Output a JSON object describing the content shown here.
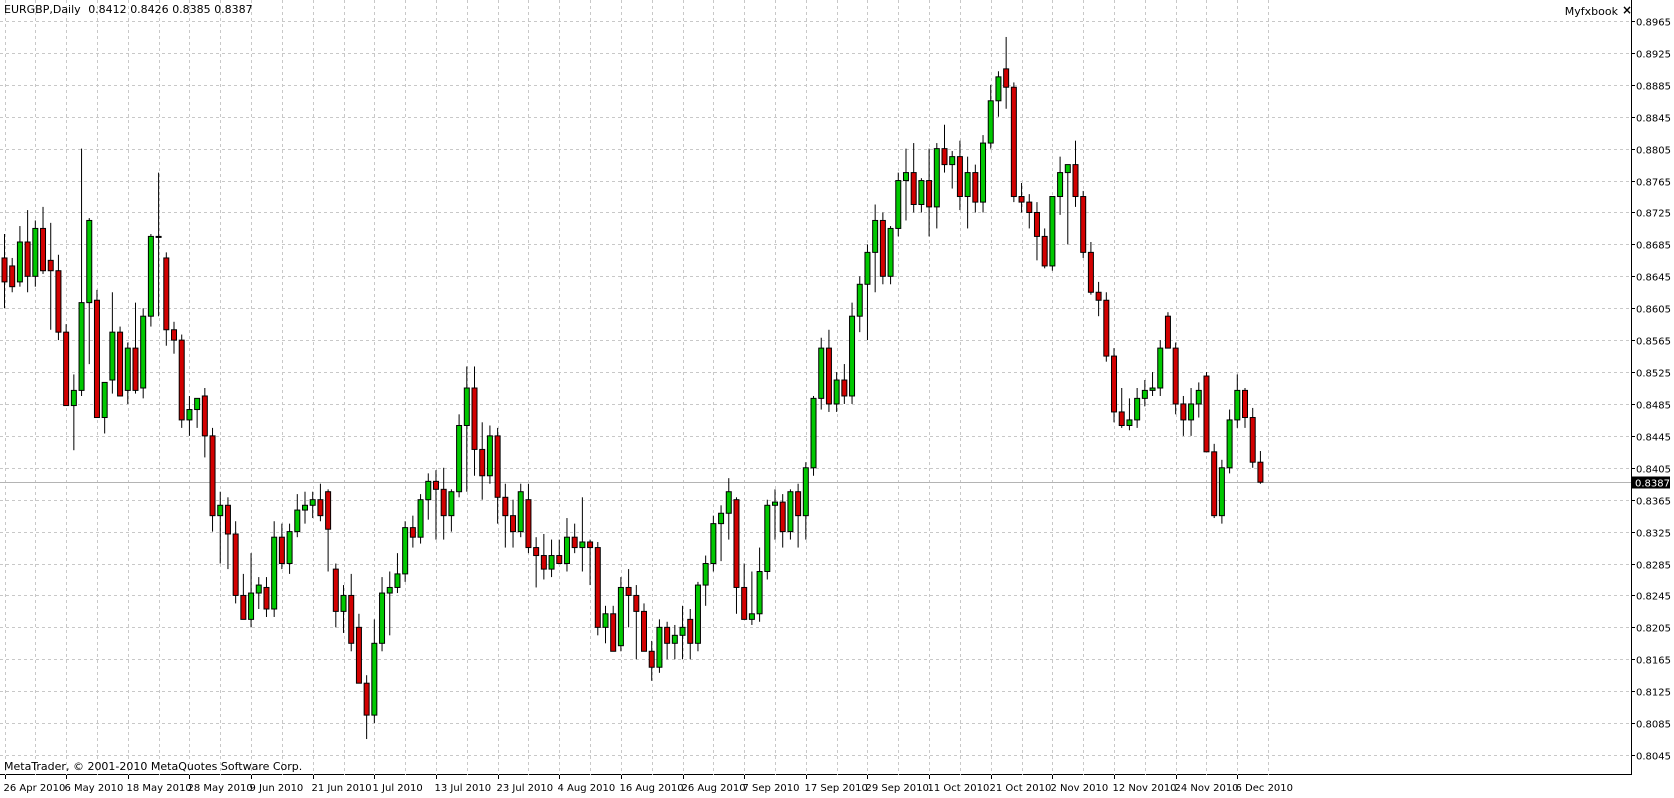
{
  "header": {
    "symbol": "EURGBP,Daily",
    "open": "0.8412",
    "high": "0.8426",
    "low": "0.8385",
    "close": "0.8387",
    "indicator": "Myfxbook",
    "close_icon": "close-icon"
  },
  "footer": {
    "copyright": "MetaTrader, © 2001-2010 MetaQuotes Software Corp."
  },
  "colors": {
    "bull": "#00c800",
    "bear": "#d20000",
    "grid": "#c8c8c8",
    "line": "#000000"
  },
  "chart_data": {
    "type": "candlestick",
    "symbol": "EURGBP",
    "timeframe": "Daily",
    "current_price": "0.8387",
    "ylim": [
      0.8045,
      0.8965
    ],
    "y_ticks": [
      "0.8965",
      "0.8925",
      "0.8885",
      "0.8845",
      "0.8805",
      "0.8765",
      "0.8725",
      "0.8685",
      "0.8645",
      "0.8605",
      "0.8565",
      "0.8525",
      "0.8485",
      "0.8445",
      "0.8405",
      "0.8365",
      "0.8325",
      "0.8285",
      "0.8245",
      "0.8205",
      "0.8165",
      "0.8125",
      "0.8085",
      "0.8045"
    ],
    "x_ticks": [
      "26 Apr 2010",
      "6 May 2010",
      "18 May 2010",
      "28 May 2010",
      "9 Jun 2010",
      "21 Jun 2010",
      "1 Jul 2010",
      "13 Jul 2010",
      "23 Jul 2010",
      "4 Aug 2010",
      "16 Aug 2010",
      "26 Aug 2010",
      "7 Sep 2010",
      "17 Sep 2010",
      "29 Sep 2010",
      "11 Oct 2010",
      "21 Oct 2010",
      "2 Nov 2010",
      "12 Nov 2010",
      "24 Nov 2010",
      "6 Dec 2010"
    ],
    "grid": true,
    "candles": [
      [
        0.8668,
        0.8698,
        0.8605,
        0.8638
      ],
      [
        0.8658,
        0.8668,
        0.8625,
        0.8632
      ],
      [
        0.8638,
        0.8708,
        0.8632,
        0.8688
      ],
      [
        0.8688,
        0.8728,
        0.8625,
        0.8645
      ],
      [
        0.8645,
        0.8715,
        0.8632,
        0.8705
      ],
      [
        0.8705,
        0.8732,
        0.8648,
        0.8652
      ],
      [
        0.8665,
        0.8712,
        0.8578,
        0.8652
      ],
      [
        0.8652,
        0.8672,
        0.8565,
        0.8575
      ],
      [
        0.8575,
        0.8585,
        0.8483,
        0.8483
      ],
      [
        0.8483,
        0.8522,
        0.8427,
        0.8502
      ],
      [
        0.8502,
        0.8805,
        0.8495,
        0.8612
      ],
      [
        0.8612,
        0.8718,
        0.8535,
        0.8715
      ],
      [
        0.8615,
        0.8628,
        0.8468,
        0.8468
      ],
      [
        0.8468,
        0.8512,
        0.8448,
        0.8512
      ],
      [
        0.8515,
        0.8625,
        0.8498,
        0.8575
      ],
      [
        0.8575,
        0.8582,
        0.8495,
        0.8495
      ],
      [
        0.8502,
        0.8562,
        0.8485,
        0.8555
      ],
      [
        0.8555,
        0.8612,
        0.8498,
        0.8502
      ],
      [
        0.8505,
        0.8605,
        0.8492,
        0.8595
      ],
      [
        0.8595,
        0.8698,
        0.8582,
        0.8695
      ],
      [
        0.8695,
        0.8775,
        0.8595,
        0.8695
      ],
      [
        0.8668,
        0.8675,
        0.8558,
        0.8578
      ],
      [
        0.8578,
        0.8588,
        0.8548,
        0.8565
      ],
      [
        0.8565,
        0.8572,
        0.8455,
        0.8465
      ],
      [
        0.8465,
        0.8495,
        0.8445,
        0.8478
      ],
      [
        0.8478,
        0.8492,
        0.8455,
        0.8492
      ],
      [
        0.8495,
        0.8505,
        0.8418,
        0.8445
      ],
      [
        0.8445,
        0.8455,
        0.8325,
        0.8345
      ],
      [
        0.8345,
        0.8375,
        0.8285,
        0.8358
      ],
      [
        0.8358,
        0.8368,
        0.8278,
        0.8322
      ],
      [
        0.8322,
        0.8338,
        0.8235,
        0.8245
      ],
      [
        0.8245,
        0.8272,
        0.8215,
        0.8215
      ],
      [
        0.8215,
        0.8298,
        0.8205,
        0.8248
      ],
      [
        0.8248,
        0.8268,
        0.8228,
        0.8258
      ],
      [
        0.8255,
        0.8268,
        0.8218,
        0.8228
      ],
      [
        0.8228,
        0.8338,
        0.8218,
        0.8318
      ],
      [
        0.8318,
        0.8335,
        0.8278,
        0.8285
      ],
      [
        0.8285,
        0.8335,
        0.8272,
        0.8325
      ],
      [
        0.8325,
        0.8372,
        0.8318,
        0.8352
      ],
      [
        0.8352,
        0.8375,
        0.8335,
        0.8358
      ],
      [
        0.8358,
        0.8375,
        0.8342,
        0.8365
      ],
      [
        0.8365,
        0.8385,
        0.8338,
        0.8345
      ],
      [
        0.8375,
        0.8378,
        0.8275,
        0.8328
      ],
      [
        0.8278,
        0.8285,
        0.8205,
        0.8225
      ],
      [
        0.8225,
        0.8258,
        0.8198,
        0.8245
      ],
      [
        0.8245,
        0.8272,
        0.8175,
        0.8185
      ],
      [
        0.8205,
        0.8222,
        0.8138,
        0.8135
      ],
      [
        0.8135,
        0.8145,
        0.8065,
        0.8095
      ],
      [
        0.8095,
        0.8215,
        0.8085,
        0.8185
      ],
      [
        0.8185,
        0.8268,
        0.8175,
        0.8248
      ],
      [
        0.8248,
        0.8275,
        0.8195,
        0.8255
      ],
      [
        0.8255,
        0.8298,
        0.8248,
        0.8272
      ],
      [
        0.8272,
        0.8338,
        0.8262,
        0.833
      ],
      [
        0.833,
        0.8345,
        0.8305,
        0.8318
      ],
      [
        0.8318,
        0.8372,
        0.831,
        0.8365
      ],
      [
        0.8365,
        0.8398,
        0.834,
        0.8388
      ],
      [
        0.8388,
        0.8402,
        0.8315,
        0.8378
      ],
      [
        0.8378,
        0.8405,
        0.8315,
        0.8345
      ],
      [
        0.8345,
        0.8378,
        0.8325,
        0.8375
      ],
      [
        0.8375,
        0.8472,
        0.8368,
        0.8458
      ],
      [
        0.8458,
        0.8532,
        0.8375,
        0.8505
      ],
      [
        0.8505,
        0.8532,
        0.8395,
        0.8428
      ],
      [
        0.8428,
        0.8462,
        0.8365,
        0.8395
      ],
      [
        0.8395,
        0.8458,
        0.8385,
        0.8445
      ],
      [
        0.8445,
        0.8455,
        0.8335,
        0.8368
      ],
      [
        0.8368,
        0.8385,
        0.8305,
        0.8345
      ],
      [
        0.8345,
        0.8365,
        0.8305,
        0.8325
      ],
      [
        0.8325,
        0.8385,
        0.8318,
        0.8375
      ],
      [
        0.8365,
        0.8385,
        0.8298,
        0.8305
      ],
      [
        0.8305,
        0.8318,
        0.8255,
        0.8295
      ],
      [
        0.8295,
        0.8322,
        0.8265,
        0.8278
      ],
      [
        0.8278,
        0.8315,
        0.8268,
        0.8295
      ],
      [
        0.8295,
        0.8315,
        0.8285,
        0.8285
      ],
      [
        0.8285,
        0.8342,
        0.8275,
        0.8318
      ],
      [
        0.8318,
        0.8335,
        0.8298,
        0.8305
      ],
      [
        0.8305,
        0.8368,
        0.8275,
        0.8312
      ],
      [
        0.8312,
        0.8315,
        0.8258,
        0.8305
      ],
      [
        0.8305,
        0.8312,
        0.8195,
        0.8205
      ],
      [
        0.8205,
        0.8232,
        0.8185,
        0.8222
      ],
      [
        0.8222,
        0.8232,
        0.8175,
        0.8175
      ],
      [
        0.8182,
        0.8268,
        0.8175,
        0.8255
      ],
      [
        0.8255,
        0.8278,
        0.8205,
        0.8245
      ],
      [
        0.8245,
        0.8258,
        0.8165,
        0.8225
      ],
      [
        0.8225,
        0.8235,
        0.8175,
        0.8175
      ],
      [
        0.8175,
        0.8188,
        0.8138,
        0.8155
      ],
      [
        0.8155,
        0.8215,
        0.8148,
        0.8205
      ],
      [
        0.8205,
        0.8212,
        0.8165,
        0.8185
      ],
      [
        0.8185,
        0.8208,
        0.8165,
        0.8195
      ],
      [
        0.8195,
        0.8232,
        0.8165,
        0.8205
      ],
      [
        0.8215,
        0.8228,
        0.8165,
        0.8185
      ],
      [
        0.8185,
        0.8262,
        0.8175,
        0.8258
      ],
      [
        0.8258,
        0.8295,
        0.8232,
        0.8285
      ],
      [
        0.8285,
        0.8345,
        0.8275,
        0.8335
      ],
      [
        0.8335,
        0.8358,
        0.8288,
        0.8348
      ],
      [
        0.8348,
        0.8392,
        0.8315,
        0.8375
      ],
      [
        0.8365,
        0.8368,
        0.8222,
        0.8255
      ],
      [
        0.8255,
        0.8285,
        0.8215,
        0.8215
      ],
      [
        0.8215,
        0.8275,
        0.8208,
        0.8222
      ],
      [
        0.8222,
        0.8305,
        0.8212,
        0.8275
      ],
      [
        0.8275,
        0.8365,
        0.8265,
        0.8358
      ],
      [
        0.8358,
        0.8378,
        0.8315,
        0.8362
      ],
      [
        0.8362,
        0.8372,
        0.8305,
        0.8325
      ],
      [
        0.8325,
        0.8378,
        0.8315,
        0.8375
      ],
      [
        0.8375,
        0.8385,
        0.8305,
        0.8345
      ],
      [
        0.8345,
        0.8412,
        0.8315,
        0.8405
      ],
      [
        0.8405,
        0.8495,
        0.8395,
        0.8492
      ],
      [
        0.8492,
        0.8568,
        0.8478,
        0.8555
      ],
      [
        0.8555,
        0.8578,
        0.8475,
        0.8485
      ],
      [
        0.8485,
        0.8525,
        0.8475,
        0.8515
      ],
      [
        0.8515,
        0.8535,
        0.8485,
        0.8495
      ],
      [
        0.8495,
        0.8612,
        0.8485,
        0.8595
      ],
      [
        0.8595,
        0.8645,
        0.8575,
        0.8635
      ],
      [
        0.8635,
        0.8685,
        0.8565,
        0.8675
      ],
      [
        0.8675,
        0.8735,
        0.8625,
        0.8715
      ],
      [
        0.8715,
        0.8725,
        0.8635,
        0.8645
      ],
      [
        0.8645,
        0.8708,
        0.8635,
        0.8705
      ],
      [
        0.8705,
        0.8775,
        0.8695,
        0.8765
      ],
      [
        0.8765,
        0.8805,
        0.8715,
        0.8775
      ],
      [
        0.8775,
        0.8812,
        0.8725,
        0.8735
      ],
      [
        0.8735,
        0.8768,
        0.8725,
        0.8765
      ],
      [
        0.8765,
        0.8805,
        0.8695,
        0.8732
      ],
      [
        0.8732,
        0.8812,
        0.8705,
        0.8805
      ],
      [
        0.8805,
        0.8835,
        0.8775,
        0.8785
      ],
      [
        0.8785,
        0.8802,
        0.8755,
        0.8795
      ],
      [
        0.8795,
        0.8815,
        0.8728,
        0.8745
      ],
      [
        0.8745,
        0.8795,
        0.8705,
        0.8775
      ],
      [
        0.8775,
        0.8785,
        0.8725,
        0.8738
      ],
      [
        0.8738,
        0.8822,
        0.8725,
        0.8812
      ],
      [
        0.8812,
        0.8885,
        0.8805,
        0.8865
      ],
      [
        0.8865,
        0.8902,
        0.8845,
        0.8895
      ],
      [
        0.8905,
        0.8945,
        0.8855,
        0.8882
      ],
      [
        0.8882,
        0.8888,
        0.8738,
        0.8745
      ],
      [
        0.8745,
        0.8762,
        0.8725,
        0.8738
      ],
      [
        0.8738,
        0.8748,
        0.8705,
        0.8725
      ],
      [
        0.8725,
        0.8738,
        0.8665,
        0.8695
      ],
      [
        0.8695,
        0.8705,
        0.8655,
        0.8658
      ],
      [
        0.8658,
        0.8742,
        0.8652,
        0.8745
      ],
      [
        0.8745,
        0.8795,
        0.8722,
        0.8775
      ],
      [
        0.8775,
        0.8785,
        0.8685,
        0.8785
      ],
      [
        0.8785,
        0.8815,
        0.8732,
        0.8745
      ],
      [
        0.8745,
        0.8752,
        0.8668,
        0.8675
      ],
      [
        0.8675,
        0.8688,
        0.8622,
        0.8625
      ],
      [
        0.8625,
        0.8638,
        0.8595,
        0.8615
      ],
      [
        0.8615,
        0.8625,
        0.8538,
        0.8545
      ],
      [
        0.8545,
        0.8555,
        0.8462,
        0.8475
      ],
      [
        0.8475,
        0.8505,
        0.8455,
        0.8458
      ],
      [
        0.8458,
        0.8492,
        0.8452,
        0.8465
      ],
      [
        0.8465,
        0.8505,
        0.8455,
        0.8492
      ],
      [
        0.8492,
        0.8515,
        0.8482,
        0.8502
      ],
      [
        0.8502,
        0.8525,
        0.8495,
        0.8505
      ],
      [
        0.8505,
        0.8565,
        0.8495,
        0.8555
      ],
      [
        0.8595,
        0.86,
        0.8555,
        0.8555
      ],
      [
        0.8555,
        0.8562,
        0.8472,
        0.8485
      ],
      [
        0.8485,
        0.8495,
        0.8445,
        0.8465
      ],
      [
        0.8465,
        0.8505,
        0.8445,
        0.8485
      ],
      [
        0.8485,
        0.8512,
        0.8468,
        0.8502
      ],
      [
        0.852,
        0.8525,
        0.8425,
        0.8425
      ],
      [
        0.8425,
        0.8435,
        0.8342,
        0.8345
      ],
      [
        0.8345,
        0.8415,
        0.8335,
        0.8405
      ],
      [
        0.8405,
        0.8478,
        0.8398,
        0.8465
      ],
      [
        0.8465,
        0.8522,
        0.8455,
        0.8502
      ],
      [
        0.8502,
        0.8505,
        0.8455,
        0.8468
      ],
      [
        0.8468,
        0.848,
        0.8405,
        0.8412
      ],
      [
        0.8412,
        0.8426,
        0.8385,
        0.8387
      ]
    ]
  }
}
